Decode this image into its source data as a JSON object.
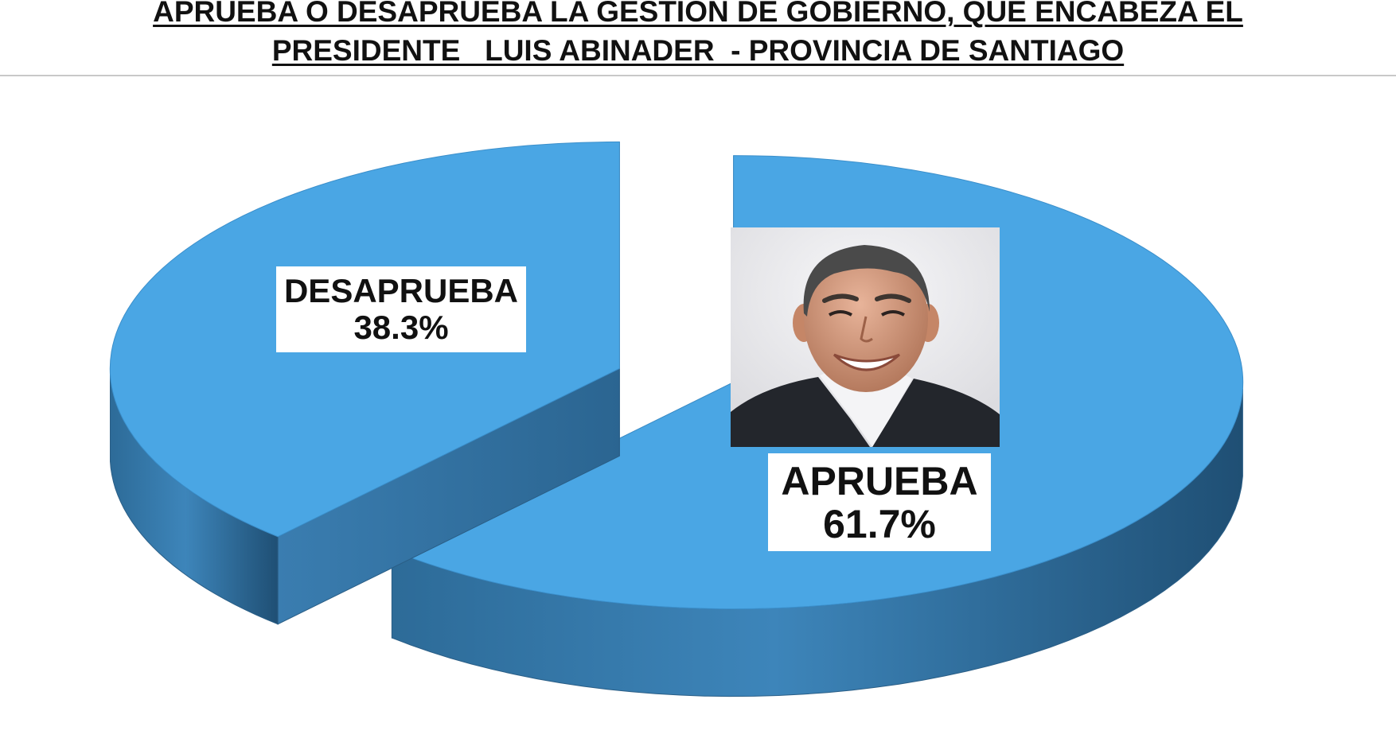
{
  "chart_data": {
    "type": "pie",
    "title": [
      "APRUEBA O DESAPRUEBA LA GESTION DE GOBIERNO, QUE ENCABEZA EL",
      "PRESIDENTE   LUIS ABINADER  - PROVINCIA DE SANTIAGO"
    ],
    "style": "3d-exploded",
    "color": "#4aa6e4",
    "slices": [
      {
        "label": "APRUEBA",
        "value": 61.7,
        "value_label": "61.7%"
      },
      {
        "label": "DESAPRUEBA",
        "value": 38.3,
        "value_label": "38.3%"
      }
    ]
  },
  "photo": {
    "icon": "portrait-photo-icon"
  }
}
